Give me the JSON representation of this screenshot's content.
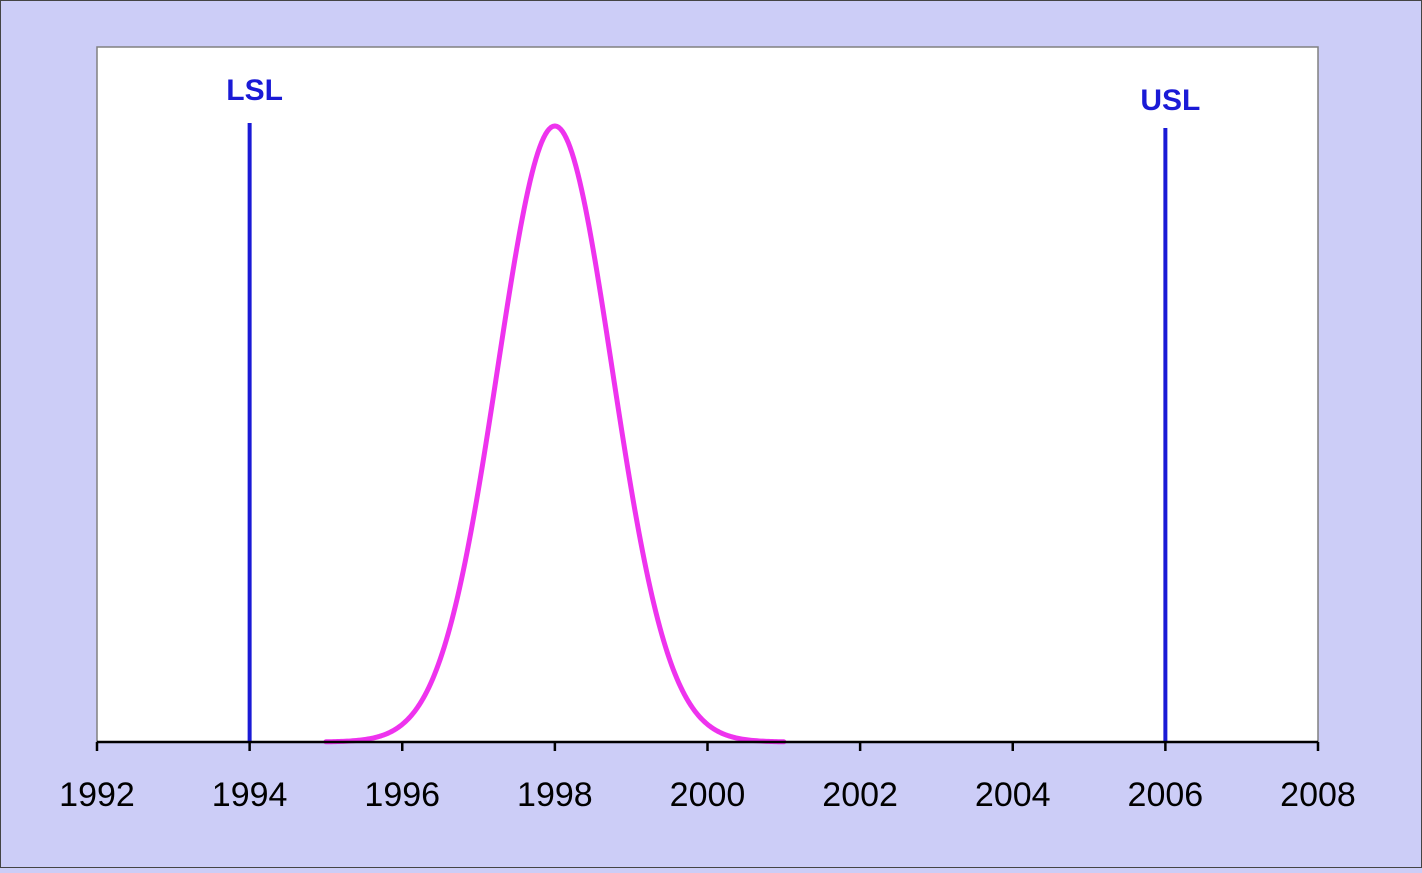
{
  "colors": {
    "background": "#cccdf7",
    "plot_area": "#ffffff",
    "curve": "#ee33ee",
    "spec_lines": "#1a1ad6",
    "axis": "#000000"
  },
  "chart_data": {
    "type": "line",
    "title": "",
    "xlabel": "",
    "ylabel": "",
    "xlim": [
      1992,
      2008
    ],
    "ylim": [
      0,
      1
    ],
    "xticks": [
      1992,
      1994,
      1996,
      1998,
      2000,
      2002,
      2004,
      2006,
      2008
    ],
    "xtick_labels": [
      "1992",
      "1994",
      "1996",
      "1998",
      "2000",
      "2002",
      "2004",
      "2006",
      "2008"
    ],
    "grid": false,
    "legend": "none",
    "series": [
      {
        "mean": 1998,
        "std_dev": 0.75,
        "x_range": [
          1995,
          2001
        ],
        "peak": 1.0
      }
    ],
    "reference_lines": [
      {
        "label": "LSL",
        "x": 1994
      },
      {
        "label": "USL",
        "x": 2006
      }
    ]
  }
}
